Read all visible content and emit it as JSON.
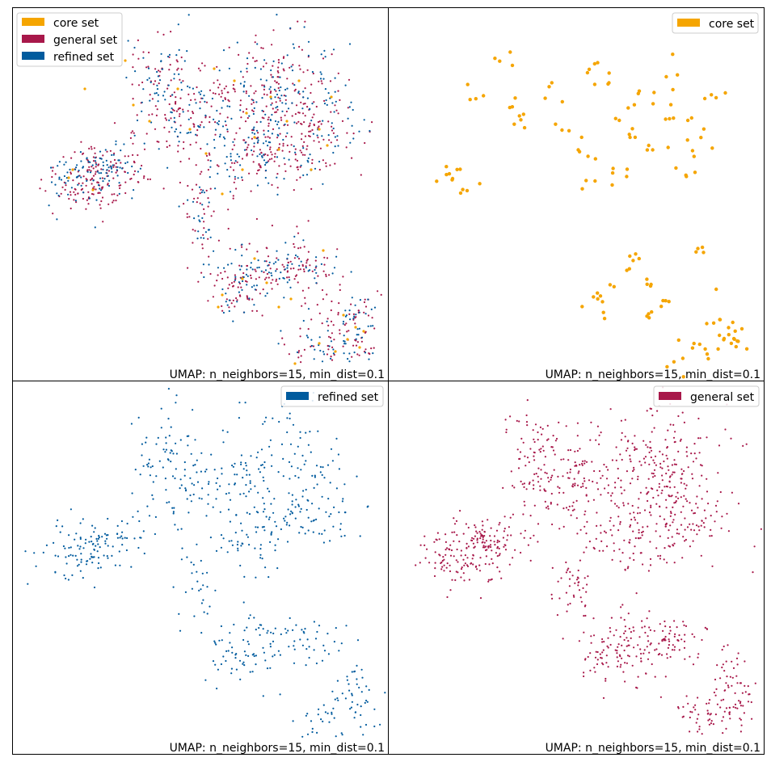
{
  "chart_data": [
    {
      "type": "scatter",
      "panel": "top-left",
      "legend": {
        "placement": "top-left",
        "entries": [
          "core set",
          "general set",
          "refined set"
        ]
      },
      "series": [
        {
          "name": "general set",
          "color": "#a8184a"
        },
        {
          "name": "refined set",
          "color": "#005b9e"
        },
        {
          "name": "core set",
          "color": "#f5a500"
        }
      ],
      "annotation": "UMAP: n_neighbors=15, min_dist=0.1",
      "grid": false,
      "axes_ticks": false
    },
    {
      "type": "scatter",
      "panel": "top-right",
      "legend": {
        "placement": "top-right",
        "entries": [
          "core set"
        ]
      },
      "series": [
        {
          "name": "core set",
          "color": "#f5a500"
        }
      ],
      "annotation": "UMAP: n_neighbors=15, min_dist=0.1",
      "grid": false,
      "axes_ticks": false
    },
    {
      "type": "scatter",
      "panel": "bottom-left",
      "legend": {
        "placement": "top-right",
        "entries": [
          "refined set"
        ]
      },
      "series": [
        {
          "name": "refined set",
          "color": "#005b9e"
        }
      ],
      "annotation": "UMAP: n_neighbors=15, min_dist=0.1",
      "grid": false,
      "axes_ticks": false
    },
    {
      "type": "scatter",
      "panel": "bottom-right",
      "legend": {
        "placement": "top-right",
        "entries": [
          "general set"
        ]
      },
      "series": [
        {
          "name": "general set",
          "color": "#a8184a"
        }
      ],
      "annotation": "UMAP: n_neighbors=15, min_dist=0.1",
      "grid": false,
      "axes_ticks": false
    }
  ],
  "colors": {
    "core": "#f5a500",
    "general": "#a8184a",
    "refined": "#005b9e"
  }
}
